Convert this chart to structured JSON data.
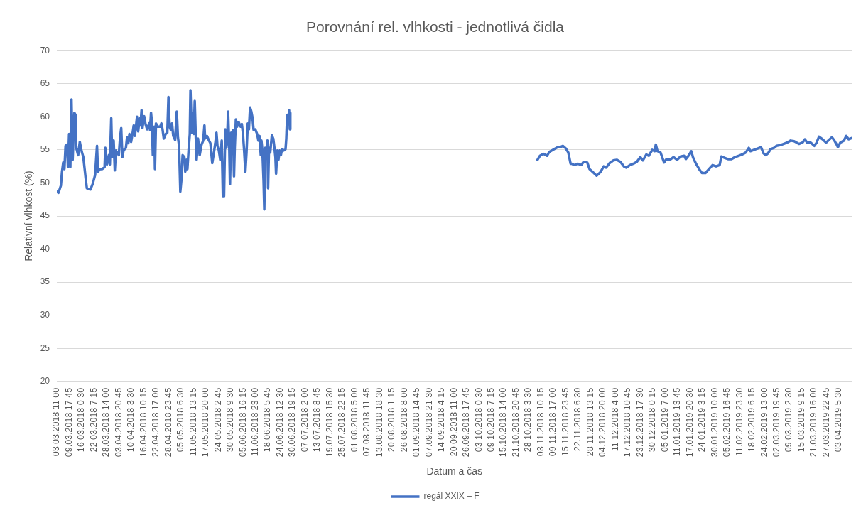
{
  "chart_data": {
    "type": "line",
    "title": "Porovnání rel. vlhkosti - jednotlivá čidla",
    "xlabel": "Datum a čas",
    "ylabel": "Relativní vlhkost (%)",
    "x": [
      "2018-03-03T11:00",
      "2018-03-04T07:00",
      "2018-03-05T12:00",
      "2018-03-06T02:00",
      "2018-03-06T17:00",
      "2018-03-07T07:00",
      "2018-03-07T21:00",
      "2018-03-08T17:00",
      "2018-03-09T02:00",
      "2018-03-09T16:00",
      "2018-03-10T07:00",
      "2018-03-10T21:00",
      "2018-03-11T11:00",
      "2018-03-12T08:00",
      "2018-03-12T22:00",
      "2018-03-13T07:00",
      "2018-03-14T06:00",
      "2018-03-15T02:00",
      "2018-03-15T22:00",
      "2018-03-16T21:00",
      "2018-03-18T02:00",
      "2018-03-18T16:00",
      "2018-03-20T11:00",
      "2018-03-21T16:00",
      "2018-03-22T20:00",
      "2018-03-23T19:00",
      "2018-03-24T07:00",
      "2018-03-25T06:00",
      "2018-03-26T11:00",
      "2018-03-27T15:00",
      "2018-03-28T00:00",
      "2018-03-28T20:00",
      "2018-03-29T19:00",
      "2018-03-30T07:00",
      "2018-03-31T00:00",
      "2018-03-31T11:00",
      "2018-04-01T05:00",
      "2018-04-01T19:00",
      "2018-04-02T09:00",
      "2018-04-03T20:00",
      "2018-04-04T10:00",
      "2018-04-05T01:00",
      "2018-04-05T15:00",
      "2018-04-06T05:00",
      "2018-04-07T10:00",
      "2018-04-08T00:00",
      "2018-04-08T15:00",
      "2018-04-09T05:00",
      "2018-04-10T01:00",
      "2018-04-10T18:00",
      "2018-04-11T09:00",
      "2018-04-11T23:00",
      "2018-04-13T01:00",
      "2018-04-13T15:00",
      "2018-04-14T09:00",
      "2018-04-14T20:00",
      "2018-04-15T08:00",
      "2018-04-15T19:00",
      "2018-04-16T15:00",
      "2018-04-17T08:00",
      "2018-04-18T04:00",
      "2018-04-19T04:00",
      "2018-04-19T15:00",
      "2018-04-20T03:00",
      "2018-04-20T14:00",
      "2018-04-21T01:00",
      "2018-04-21T19:00",
      "2018-04-22T03:00",
      "2018-04-22T15:00",
      "2018-04-23T14:00",
      "2018-04-24T19:00",
      "2018-04-25T09:00",
      "2018-04-25T23:00",
      "2018-04-26T14:00",
      "2018-04-27T13:00",
      "2018-04-28T09:00",
      "2018-04-28T23:00",
      "2018-04-29T13:00",
      "2018-04-30T04:00",
      "2018-04-30T18:00",
      "2018-05-01T09:00",
      "2018-05-02T08:00",
      "2018-05-03T04:00",
      "2018-05-03T18:00",
      "2018-05-04T08:00",
      "2018-05-04T23:00",
      "2018-05-05T13:00",
      "2018-05-06T03:00",
      "2018-05-07T00:00",
      "2018-05-07T11:00",
      "2018-05-08T04:00",
      "2018-05-08T13:00",
      "2018-05-09T03:00",
      "2018-05-09T18:00",
      "2018-05-10T02:00",
      "2018-05-10T17:00",
      "2018-05-11T07:00",
      "2018-05-11T19:00",
      "2018-05-12T06:00",
      "2018-05-12T18:00",
      "2018-05-13T05:00",
      "2018-05-13T22:00",
      "2018-05-14T18:00",
      "2018-05-15T17:00",
      "2018-05-16T13:00",
      "2018-05-17T04:00",
      "2018-05-17T12:00",
      "2018-05-18T11:00",
      "2018-05-19T08:00",
      "2018-05-20T04:00",
      "2018-05-21T03:00",
      "2018-05-21T23:00",
      "2018-05-22T16:00",
      "2018-05-23T06:00",
      "2018-05-23T18:00",
      "2018-05-24T11:00",
      "2018-05-25T04:00",
      "2018-05-25T22:00",
      "2018-05-26T12:00",
      "2018-05-27T02:00",
      "2018-05-27T17:00",
      "2018-05-28T07:00",
      "2018-05-28T16:00",
      "2018-05-29T03:00",
      "2018-05-29T17:00",
      "2018-05-30T02:00",
      "2018-05-30T17:00",
      "2018-05-31T07:00",
      "2018-05-31T15:00",
      "2018-06-01T03:00",
      "2018-06-01T12:00",
      "2018-06-02T02:00",
      "2018-06-02T16:00",
      "2018-06-03T12:00",
      "2018-06-04T11:00",
      "2018-06-05T02:00",
      "2018-06-05T16:00",
      "2018-06-06T06:00",
      "2018-06-06T21:00",
      "2018-06-07T11:00",
      "2018-06-08T02:00",
      "2018-06-08T16:00",
      "2018-06-09T06:00",
      "2018-06-09T21:00",
      "2018-06-10T11:00",
      "2018-06-11T01:00",
      "2018-06-11T22:00",
      "2018-06-12T20:00",
      "2018-06-13T11:00",
      "2018-06-14T01:00",
      "2018-06-14T16:00",
      "2018-06-15T00:00",
      "2018-06-15T12:00",
      "2018-06-16T02:00",
      "2018-06-16T11:00",
      "2018-06-16T22:00",
      "2018-06-17T10:00",
      "2018-06-18T00:00",
      "2018-06-18T09:00",
      "2018-06-18T20:00",
      "2018-06-19T11:00",
      "2018-06-20T07:00",
      "2018-06-21T00:00",
      "2018-06-21T14:00",
      "2018-06-22T02:00",
      "2018-06-22T10:00",
      "2018-06-23T01:00",
      "2018-06-23T15:00",
      "2018-06-24T05:00",
      "2018-06-24T20:00",
      "2018-06-25T10:00",
      "2018-06-26T06:00",
      "2018-06-27T05:00",
      "2018-06-27T14:00",
      "2018-06-28T01:00",
      "2018-06-28T16:00",
      "2018-06-29T00:00",
      "2018-06-29T09:00",
      "2018-06-29T15:00",
      "2018-09-01T00:00",
      "2018-11-01T17:00",
      "2018-11-02T22:00",
      "2018-11-04T17:00",
      "2018-11-06T12:00",
      "2018-11-07T17:00",
      "2018-11-10T02:00",
      "2018-11-11T21:00",
      "2018-11-13T02:00",
      "2018-11-14T13:00",
      "2018-11-16T02:00",
      "2018-11-17T07:00",
      "2018-11-18T11:00",
      "2018-11-19T02:00",
      "2018-11-20T06:00",
      "2018-11-22T02:00",
      "2018-11-23T21:00",
      "2018-11-25T01:00",
      "2018-11-26T21:00",
      "2018-11-28T01:00",
      "2018-11-29T20:00",
      "2018-12-01T15:00",
      "2018-12-03T11:00",
      "2018-12-05T06:00",
      "2018-12-06T10:00",
      "2018-12-08T05:00",
      "2018-12-10T01:00",
      "2018-12-11T20:00",
      "2018-12-13T15:00",
      "2018-12-15T10:00",
      "2018-12-16T15:00",
      "2018-12-18T10:00",
      "2018-12-20T05:00",
      "2018-12-22T00:00",
      "2018-12-23T19:00",
      "2018-12-25T00:00",
      "2018-12-26T19:00",
      "2018-12-28T00:00",
      "2018-12-29T19:00",
      "2018-12-30T23:00",
      "2018-12-31T14:00",
      "2019-01-01T10:00",
      "2019-01-02T23:00",
      "2019-01-04T18:00",
      "2019-01-05T23:00",
      "2019-01-07T18:00",
      "2019-01-09T13:00",
      "2019-01-11T08:00",
      "2019-01-13T03:00",
      "2019-01-14T22:00",
      "2019-01-15T19:00",
      "2019-01-17T08:00",
      "2019-01-18T13:00",
      "2019-01-19T09:00",
      "2019-01-20T22:00",
      "2019-01-22T17:00",
      "2019-01-23T22:00",
      "2019-01-25T17:00",
      "2019-01-27T12:00",
      "2019-01-29T07:00",
      "2019-01-31T02:00",
      "2019-02-01T21:00",
      "2019-02-02T18:00",
      "2019-02-04T07:00",
      "2019-02-06T02:00",
      "2019-02-07T21:00",
      "2019-02-09T16:00",
      "2019-02-11T11:00",
      "2019-02-13T06:00",
      "2019-02-15T02:00",
      "2019-02-16T15:00",
      "2019-02-17T11:00",
      "2019-02-19T06:00",
      "2019-02-21T01:00",
      "2019-02-22T20:00",
      "2019-02-24T01:00",
      "2019-02-25T06:00",
      "2019-02-26T10:00",
      "2019-02-27T15:00",
      "2019-03-01T10:00",
      "2019-03-02T15:00",
      "2019-03-04T10:00",
      "2019-03-06T05:00",
      "2019-03-08T00:00",
      "2019-03-09T19:00",
      "2019-03-11T14:00",
      "2019-03-14T00:00",
      "2019-03-15T19:00",
      "2019-03-17T00:00",
      "2019-03-18T04:00",
      "2019-03-20T00:00",
      "2019-03-21T19:00",
      "2019-03-22T23:00",
      "2019-03-24T04:00",
      "2019-03-25T23:00",
      "2019-03-27T18:00",
      "2019-03-29T13:00",
      "2019-03-30T18:00",
      "2019-03-31T23:00",
      "2019-04-01T22:00",
      "2019-04-02T18:00",
      "2019-04-03T23:00",
      "2019-04-05T18:00",
      "2019-04-06T23:00",
      "2019-04-08T03:00",
      "2019-04-09T22:00"
    ],
    "series": [
      {
        "name": "regál XXIX – F",
        "color": "#4472c4",
        "values": [
          48.7,
          48.5,
          49.6,
          51.7,
          53.1,
          52.1,
          55.6,
          55.8,
          52.4,
          57.4,
          52.4,
          62.6,
          53.5,
          60.6,
          60.3,
          55.3,
          54.2,
          56.2,
          54.9,
          53.9,
          50.6,
          49.2,
          49.0,
          49.9,
          51.2,
          55.6,
          51.7,
          52.1,
          52.1,
          52.4,
          55.3,
          52.8,
          54.2,
          52.8,
          59.8,
          53.9,
          56.4,
          51.9,
          54.9,
          54.2,
          56.7,
          58.3,
          53.9,
          54.9,
          55.3,
          56.9,
          56.0,
          57.4,
          56.2,
          57.4,
          58.7,
          57.1,
          60.0,
          57.8,
          59.8,
          58.7,
          61.0,
          58.3,
          60.1,
          58.9,
          58.1,
          59.0,
          58.0,
          60.6,
          59.2,
          54.2,
          58.5,
          52.1,
          59.0,
          58.5,
          58.5,
          59.0,
          58.1,
          56.7,
          57.4,
          57.6,
          63.0,
          58.5,
          58.0,
          59.0,
          57.1,
          56.5,
          60.8,
          56.9,
          55.6,
          48.7,
          50.6,
          54.2,
          53.9,
          51.7,
          53.5,
          52.1,
          54.9,
          57.4,
          64.0,
          57.6,
          60.6,
          57.4,
          62.4,
          57.1,
          53.5,
          56.7,
          54.2,
          55.8,
          56.4,
          58.7,
          56.7,
          57.1,
          56.5,
          56.0,
          53.0,
          54.6,
          56.0,
          57.6,
          55.6,
          54.9,
          53.5,
          56.4,
          48.0,
          48.0,
          58.1,
          55.3,
          56.5,
          60.8,
          55.6,
          49.8,
          57.6,
          55.6,
          58.0,
          51.0,
          55.3,
          59.6,
          58.5,
          59.2,
          58.5,
          58.9,
          57.4,
          54.9,
          51.7,
          54.6,
          59.0,
          58.1,
          61.4,
          60.8,
          59.9,
          58.0,
          58.1,
          57.4,
          56.4,
          57.1,
          54.2,
          56.4,
          54.9,
          50.3,
          46.0,
          55.3,
          54.2,
          56.4,
          49.2,
          55.3,
          54.6,
          57.2,
          56.7,
          55.3,
          53.9,
          51.4,
          54.9,
          53.5,
          54.9,
          54.2,
          55.1,
          54.9,
          55.1,
          56.7,
          60.3,
          59.6,
          61.0,
          58.1,
          60.6,
          null,
          53.5,
          54.1,
          54.4,
          54.1,
          54.7,
          55.1,
          55.4,
          55.4,
          55.6,
          55.2,
          54.6,
          52.9,
          52.9,
          52.7,
          52.9,
          52.7,
          53.2,
          53.1,
          52.1,
          51.6,
          51.1,
          51.6,
          52.5,
          52.3,
          53.0,
          53.4,
          53.5,
          53.2,
          52.5,
          52.3,
          52.7,
          52.9,
          53.2,
          53.9,
          53.4,
          54.3,
          54.1,
          55.0,
          54.8,
          55.8,
          54.8,
          54.6,
          53.1,
          53.6,
          53.5,
          53.9,
          53.5,
          54.0,
          54.1,
          53.6,
          54.2,
          54.8,
          53.9,
          52.9,
          52.0,
          51.5,
          51.5,
          52.1,
          52.7,
          52.5,
          52.7,
          54.0,
          53.8,
          53.6,
          53.6,
          53.9,
          54.1,
          54.3,
          54.6,
          55.3,
          54.8,
          55.0,
          55.2,
          55.4,
          54.5,
          54.2,
          54.5,
          55.1,
          55.3,
          55.6,
          55.7,
          55.9,
          56.1,
          56.4,
          56.3,
          55.9,
          56.1,
          56.6,
          56.1,
          56.1,
          55.6,
          56.1,
          57.0,
          56.6,
          56.1,
          56.6,
          56.9,
          56.4,
          55.9,
          55.4,
          56.1,
          56.4,
          57.1,
          56.6,
          56.8
        ]
      }
    ],
    "xlim": [
      "2018-03-03T11:00",
      "2019-04-09T22:00"
    ],
    "xticks": [
      {
        "value": "2018-03-03T11:00",
        "label": "03.03.2018 11:00"
      },
      {
        "value": "2018-03-09T17:45",
        "label": "09.03.2018 17:45"
      },
      {
        "value": "2018-03-16T00:30",
        "label": "16.03.2018 0:30"
      },
      {
        "value": "2018-03-22T07:15",
        "label": "22.03.2018 7:15"
      },
      {
        "value": "2018-03-28T14:00",
        "label": "28.03.2018 14:00"
      },
      {
        "value": "2018-04-03T20:45",
        "label": "03.04.2018 20:45"
      },
      {
        "value": "2018-04-10T03:30",
        "label": "10.04.2018 3:30"
      },
      {
        "value": "2018-04-16T10:15",
        "label": "16.04.2018 10:15"
      },
      {
        "value": "2018-04-22T17:00",
        "label": "22.04.2018 17:00"
      },
      {
        "value": "2018-04-28T23:45",
        "label": "28.04.2018 23:45"
      },
      {
        "value": "2018-05-05T06:30",
        "label": "05.05.2018 6:30"
      },
      {
        "value": "2018-05-11T13:15",
        "label": "11.05.2018 13:15"
      },
      {
        "value": "2018-05-17T20:00",
        "label": "17.05.2018 20:00"
      },
      {
        "value": "2018-05-24T02:45",
        "label": "24.05.2018 2:45"
      },
      {
        "value": "2018-05-30T09:30",
        "label": "30.05.2018 9:30"
      },
      {
        "value": "2018-06-05T16:15",
        "label": "05.06.2018 16:15"
      },
      {
        "value": "2018-06-11T23:00",
        "label": "11.06.2018 23:00"
      },
      {
        "value": "2018-06-18T05:45",
        "label": "18.06.2018 5:45"
      },
      {
        "value": "2018-06-24T12:30",
        "label": "24.06.2018 12:30"
      },
      {
        "value": "2018-06-30T19:15",
        "label": "30.06.2018 19:15"
      },
      {
        "value": "2018-07-07T02:00",
        "label": "07.07.2018 2:00"
      },
      {
        "value": "2018-07-13T08:45",
        "label": "13.07.2018 8:45"
      },
      {
        "value": "2018-07-19T15:30",
        "label": "19.07.2018 15:30"
      },
      {
        "value": "2018-07-25T22:15",
        "label": "25.07.2018 22:15"
      },
      {
        "value": "2018-08-01T05:00",
        "label": "01.08.2018 5:00"
      },
      {
        "value": "2018-08-07T11:45",
        "label": "07.08.2018 11:45"
      },
      {
        "value": "2018-08-13T18:30",
        "label": "13.08.2018 18:30"
      },
      {
        "value": "2018-08-20T01:15",
        "label": "20.08.2018 1:15"
      },
      {
        "value": "2018-08-26T08:00",
        "label": "26.08.2018 8:00"
      },
      {
        "value": "2018-09-01T14:45",
        "label": "01.09.2018 14:45"
      },
      {
        "value": "2018-09-07T21:30",
        "label": "07.09.2018 21:30"
      },
      {
        "value": "2018-09-14T04:15",
        "label": "14.09.2018 4:15"
      },
      {
        "value": "2018-09-20T11:00",
        "label": "20.09.2018 11:00"
      },
      {
        "value": "2018-09-26T17:45",
        "label": "26.09.2018 17:45"
      },
      {
        "value": "2018-10-03T00:30",
        "label": "03.10.2018 0:30"
      },
      {
        "value": "2018-10-09T07:15",
        "label": "09.10.2018 7:15"
      },
      {
        "value": "2018-10-15T14:00",
        "label": "15.10.2018 14:00"
      },
      {
        "value": "2018-10-21T20:45",
        "label": "21.10.2018 20:45"
      },
      {
        "value": "2018-10-28T03:30",
        "label": "28.10.2018 3:30"
      },
      {
        "value": "2018-11-03T10:15",
        "label": "03.11.2018 10:15"
      },
      {
        "value": "2018-11-09T17:00",
        "label": "09.11.2018 17:00"
      },
      {
        "value": "2018-11-15T23:45",
        "label": "15.11.2018 23:45"
      },
      {
        "value": "2018-11-22T06:30",
        "label": "22.11.2018 6:30"
      },
      {
        "value": "2018-11-28T13:15",
        "label": "28.11.2018 13:15"
      },
      {
        "value": "2018-12-04T20:00",
        "label": "04.12.2018 20:00"
      },
      {
        "value": "2018-12-11T04:00",
        "label": "11.12.2018 4:00"
      },
      {
        "value": "2018-12-17T10:45",
        "label": "17.12.2018 10:45"
      },
      {
        "value": "2018-12-23T17:30",
        "label": "23.12.2018 17:30"
      },
      {
        "value": "2018-12-30T00:15",
        "label": "30.12.2018 0:15"
      },
      {
        "value": "2019-01-05T07:00",
        "label": "05.01.2019 7:00"
      },
      {
        "value": "2019-01-11T13:45",
        "label": "11.01.2019 13:45"
      },
      {
        "value": "2019-01-17T20:30",
        "label": "17.01.2019 20:30"
      },
      {
        "value": "2019-01-24T03:15",
        "label": "24.01.2019 3:15"
      },
      {
        "value": "2019-01-30T10:00",
        "label": "30.01.2019 10:00"
      },
      {
        "value": "2019-02-05T16:45",
        "label": "05.02.2019 16:45"
      },
      {
        "value": "2019-02-11T23:30",
        "label": "11.02.2019 23:30"
      },
      {
        "value": "2019-02-18T06:15",
        "label": "18.02.2019 6:15"
      },
      {
        "value": "2019-02-24T13:00",
        "label": "24.02.2019 13:00"
      },
      {
        "value": "2019-03-02T19:45",
        "label": "02.03.2019 19:45"
      },
      {
        "value": "2019-03-09T02:30",
        "label": "09.03.2019 2:30"
      },
      {
        "value": "2019-03-15T09:15",
        "label": "15.03.2019 9:15"
      },
      {
        "value": "2019-03-21T16:00",
        "label": "21.03.2019 16:00"
      },
      {
        "value": "2019-03-27T22:45",
        "label": "27.03.2019 22:45"
      },
      {
        "value": "2019-04-03T05:30",
        "label": "03.04.2019 5:30"
      }
    ],
    "ylim": [
      20,
      70
    ],
    "yticks": [
      20,
      25,
      30,
      35,
      40,
      45,
      50,
      55,
      60,
      65,
      70
    ],
    "grid": "y",
    "legend": "bottom",
    "marker": "none"
  }
}
